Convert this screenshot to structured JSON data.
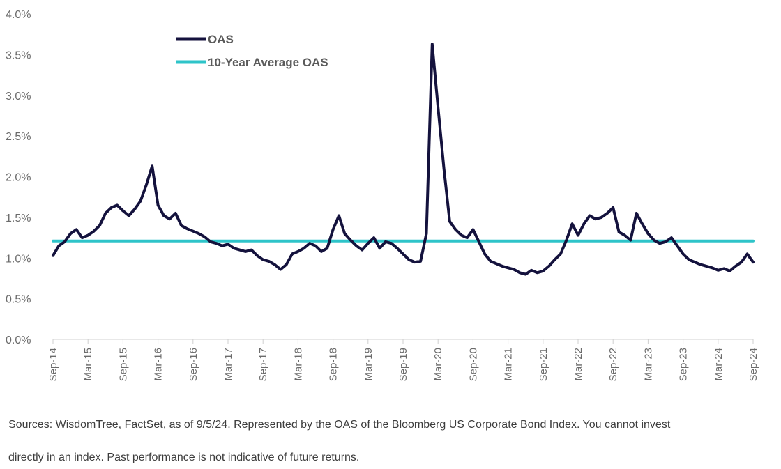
{
  "chart_data": {
    "type": "line",
    "title": "",
    "xlabel": "",
    "ylabel": "",
    "ylim": [
      0,
      4.0
    ],
    "y_ticks": [
      "0.0%",
      "0.5%",
      "1.0%",
      "1.5%",
      "2.0%",
      "2.5%",
      "3.0%",
      "3.5%",
      "4.0%"
    ],
    "x_ticks": [
      "Sep-14",
      "Mar-15",
      "Sep-15",
      "Mar-16",
      "Sep-16",
      "Mar-17",
      "Sep-17",
      "Mar-18",
      "Sep-18",
      "Mar-19",
      "Sep-19",
      "Mar-20",
      "Sep-20",
      "Mar-21",
      "Sep-21",
      "Mar-22",
      "Sep-22",
      "Mar-23",
      "Sep-23",
      "Mar-24",
      "Sep-24"
    ],
    "grid": false,
    "legend_position": "top-left",
    "series": [
      {
        "name": "OAS",
        "color": "#14123d",
        "x": [
          "2014-09",
          "2014-10",
          "2014-11",
          "2014-12",
          "2015-01",
          "2015-02",
          "2015-03",
          "2015-04",
          "2015-05",
          "2015-06",
          "2015-07",
          "2015-08",
          "2015-09",
          "2015-10",
          "2015-11",
          "2015-12",
          "2016-01",
          "2016-02",
          "2016-03",
          "2016-04",
          "2016-05",
          "2016-06",
          "2016-07",
          "2016-08",
          "2016-09",
          "2016-10",
          "2016-11",
          "2016-12",
          "2017-01",
          "2017-02",
          "2017-03",
          "2017-04",
          "2017-05",
          "2017-06",
          "2017-07",
          "2017-08",
          "2017-09",
          "2017-10",
          "2017-11",
          "2017-12",
          "2018-01",
          "2018-02",
          "2018-03",
          "2018-04",
          "2018-05",
          "2018-06",
          "2018-07",
          "2018-08",
          "2018-09",
          "2018-10",
          "2018-11",
          "2018-12",
          "2019-01",
          "2019-02",
          "2019-03",
          "2019-04",
          "2019-05",
          "2019-06",
          "2019-07",
          "2019-08",
          "2019-09",
          "2019-10",
          "2019-11",
          "2019-12",
          "2020-01",
          "2020-02",
          "2020-03",
          "2020-04",
          "2020-05",
          "2020-06",
          "2020-07",
          "2020-08",
          "2020-09",
          "2020-10",
          "2020-11",
          "2020-12",
          "2021-01",
          "2021-02",
          "2021-03",
          "2021-04",
          "2021-05",
          "2021-06",
          "2021-07",
          "2021-08",
          "2021-09",
          "2021-10",
          "2021-11",
          "2021-12",
          "2022-01",
          "2022-02",
          "2022-03",
          "2022-04",
          "2022-05",
          "2022-06",
          "2022-07",
          "2022-08",
          "2022-09",
          "2022-10",
          "2022-11",
          "2022-12",
          "2023-01",
          "2023-02",
          "2023-03",
          "2023-04",
          "2023-05",
          "2023-06",
          "2023-07",
          "2023-08",
          "2023-09",
          "2023-10",
          "2023-11",
          "2023-12",
          "2024-01",
          "2024-02",
          "2024-03",
          "2024-04",
          "2024-05",
          "2024-06",
          "2024-07",
          "2024-08",
          "2024-09"
        ],
        "values": [
          1.03,
          1.15,
          1.2,
          1.3,
          1.35,
          1.25,
          1.28,
          1.33,
          1.4,
          1.55,
          1.62,
          1.65,
          1.58,
          1.52,
          1.6,
          1.7,
          1.9,
          2.13,
          1.65,
          1.52,
          1.48,
          1.55,
          1.4,
          1.36,
          1.33,
          1.3,
          1.26,
          1.2,
          1.18,
          1.15,
          1.17,
          1.12,
          1.1,
          1.08,
          1.1,
          1.03,
          0.98,
          0.96,
          0.92,
          0.86,
          0.92,
          1.05,
          1.08,
          1.12,
          1.18,
          1.15,
          1.08,
          1.12,
          1.35,
          1.52,
          1.3,
          1.22,
          1.15,
          1.1,
          1.18,
          1.25,
          1.12,
          1.2,
          1.18,
          1.12,
          1.05,
          0.98,
          0.95,
          0.96,
          1.3,
          3.63,
          2.85,
          2.1,
          1.45,
          1.35,
          1.28,
          1.25,
          1.35,
          1.2,
          1.05,
          0.96,
          0.93,
          0.9,
          0.88,
          0.86,
          0.82,
          0.8,
          0.85,
          0.82,
          0.84,
          0.9,
          0.98,
          1.05,
          1.22,
          1.42,
          1.28,
          1.42,
          1.52,
          1.48,
          1.5,
          1.55,
          1.62,
          1.32,
          1.28,
          1.22,
          1.55,
          1.42,
          1.3,
          1.22,
          1.18,
          1.2,
          1.25,
          1.15,
          1.05,
          0.98,
          0.95,
          0.92,
          0.9,
          0.88,
          0.85,
          0.87,
          0.84,
          0.9,
          0.95,
          1.05,
          0.95
        ]
      },
      {
        "name": "10-Year Average OAS",
        "color": "#2ec4c9",
        "x": [
          "2014-09",
          "2024-09"
        ],
        "values": [
          1.21,
          1.21
        ]
      }
    ]
  },
  "legend": {
    "items": [
      {
        "label": "OAS",
        "color": "#14123d"
      },
      {
        "label": "10-Year Average OAS",
        "color": "#2ec4c9"
      }
    ]
  },
  "footnote": {
    "line1": "Sources: WisdomTree, FactSet, as of 9/5/24. Represented by the OAS of the Bloomberg US Corporate Bond Index. You cannot invest",
    "line2": "directly in an index. Past performance is not indicative of future returns."
  }
}
